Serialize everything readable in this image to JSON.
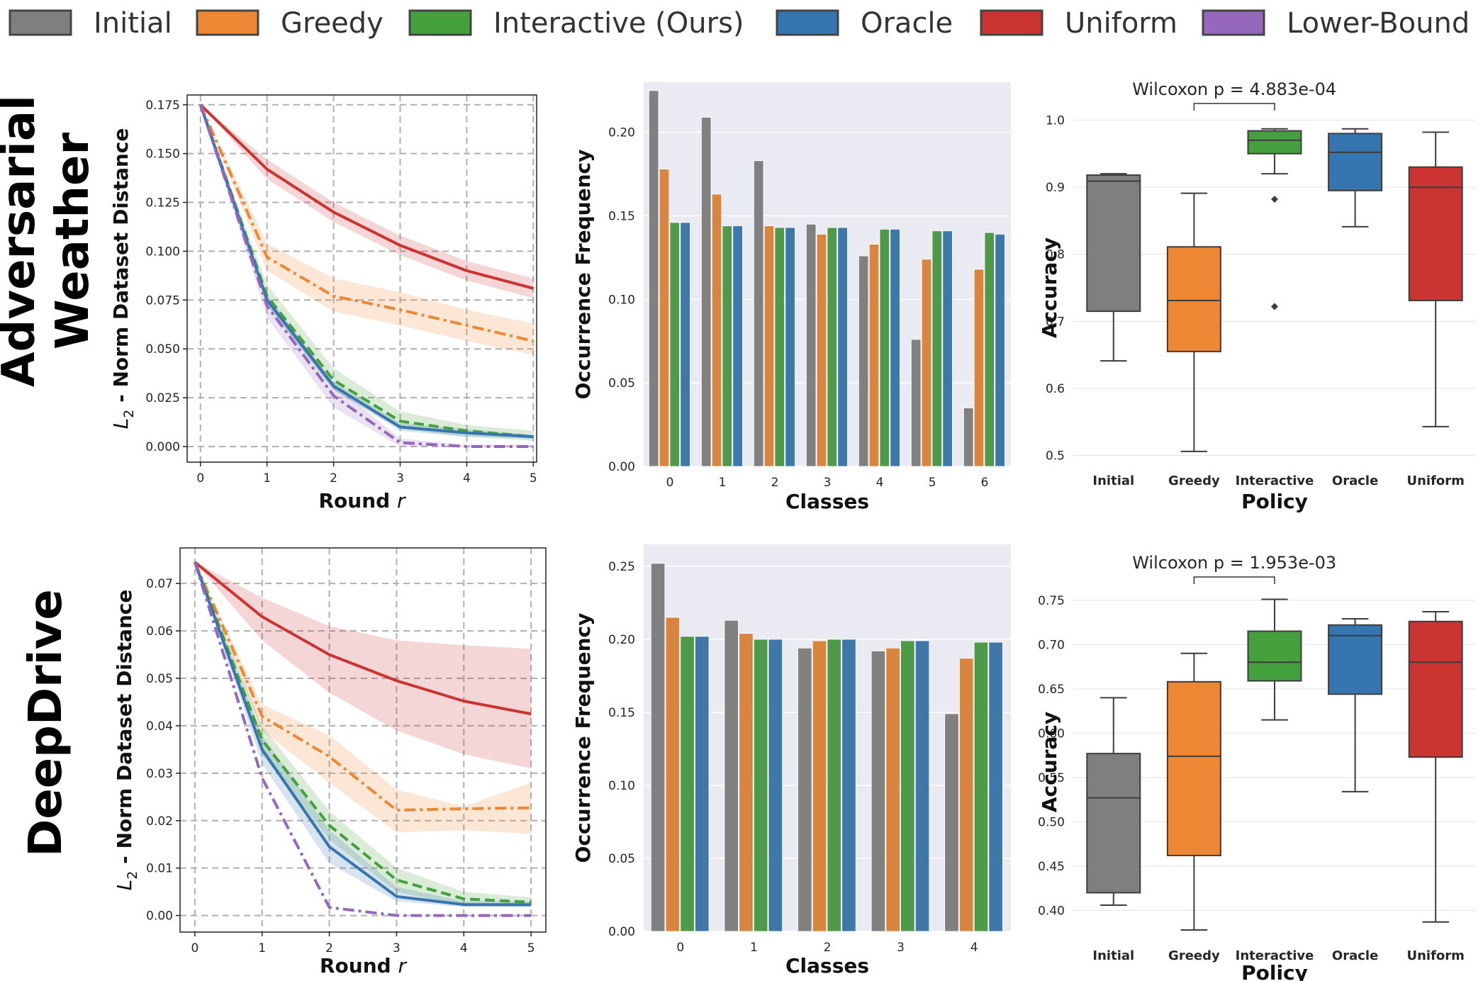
{
  "colors": {
    "Initial": "#7f7f7f",
    "Greedy": "#ee8733",
    "Interactive": "#44a03d",
    "Oracle": "#3575b0",
    "Uniform": "#cc3431",
    "LowerBound": "#9467bd",
    "bar_Initial": "#808080",
    "bar_Greedy": "#d98540",
    "bar_Interactive": "#4f9a48",
    "bar_Oracle": "#3f78a8",
    "panel_bg": "#eaeaf2"
  },
  "legend": [
    "Initial",
    "Greedy",
    "Interactive (Ours)",
    "Oracle",
    "Uniform",
    "Lower-Bound"
  ],
  "rows": [
    {
      "label_lines": [
        "Adversarial",
        "Weather"
      ]
    },
    {
      "label_lines": [
        "DeepDrive"
      ]
    }
  ],
  "chart_data": [
    {
      "id": "aw-distance",
      "type": "line",
      "xlabel": "Round r",
      "ylabel": "L2 - Norm Dataset Distance",
      "x": [
        0,
        1,
        2,
        3,
        4,
        5
      ],
      "xlim": [
        -0.2,
        5.05
      ],
      "ylim": [
        -0.008,
        0.18
      ],
      "yticks": [
        "0.000",
        "0.025",
        "0.050",
        "0.075",
        "0.100",
        "0.125",
        "0.150",
        "0.175"
      ],
      "grid": true,
      "series": [
        {
          "name": "Uniform",
          "style": "solid",
          "values": [
            0.175,
            0.142,
            0.12,
            0.103,
            0.09,
            0.081
          ],
          "lower": [
            0.175,
            0.137,
            0.115,
            0.098,
            0.085,
            0.076
          ],
          "upper": [
            0.175,
            0.147,
            0.125,
            0.108,
            0.095,
            0.086
          ]
        },
        {
          "name": "Greedy",
          "style": "dashdot",
          "values": [
            0.175,
            0.097,
            0.077,
            0.07,
            0.062,
            0.054
          ],
          "lower": [
            0.175,
            0.09,
            0.069,
            0.062,
            0.054,
            0.047
          ],
          "upper": [
            0.175,
            0.104,
            0.086,
            0.079,
            0.07,
            0.063
          ]
        },
        {
          "name": "Interactive",
          "style": "dashed",
          "values": [
            0.175,
            0.077,
            0.034,
            0.013,
            0.008,
            0.005
          ],
          "lower": [
            0.175,
            0.072,
            0.029,
            0.009,
            0.005,
            0.003
          ],
          "upper": [
            0.175,
            0.083,
            0.04,
            0.018,
            0.011,
            0.008
          ]
        },
        {
          "name": "Oracle",
          "style": "solid",
          "values": [
            0.175,
            0.075,
            0.031,
            0.01,
            0.007,
            0.005
          ],
          "lower": [
            0.175,
            0.073,
            0.029,
            0.008,
            0.005,
            0.004
          ],
          "upper": [
            0.175,
            0.077,
            0.033,
            0.012,
            0.009,
            0.006
          ]
        },
        {
          "name": "LowerBound",
          "style": "dashdot",
          "values": [
            0.175,
            0.072,
            0.026,
            0.002,
            0.0,
            0.0
          ],
          "lower": [
            0.175,
            0.066,
            0.02,
            0.0,
            0.0,
            0.0
          ],
          "upper": [
            0.175,
            0.078,
            0.032,
            0.004,
            0.001,
            0.001
          ]
        }
      ]
    },
    {
      "id": "aw-frequency",
      "type": "bar",
      "xlabel": "Classes",
      "ylabel": "Occurrence Frequency",
      "categories": [
        "0",
        "1",
        "2",
        "3",
        "4",
        "5",
        "6"
      ],
      "ylim": [
        0,
        0.23
      ],
      "yticks": [
        "0.00",
        "0.05",
        "0.10",
        "0.15",
        "0.20"
      ],
      "series": [
        {
          "name": "Initial",
          "values": [
            0.225,
            0.209,
            0.183,
            0.145,
            0.126,
            0.076,
            0.035
          ]
        },
        {
          "name": "Greedy",
          "values": [
            0.178,
            0.163,
            0.144,
            0.139,
            0.133,
            0.124,
            0.118
          ]
        },
        {
          "name": "Interactive",
          "values": [
            0.146,
            0.144,
            0.143,
            0.143,
            0.142,
            0.141,
            0.14
          ]
        },
        {
          "name": "Oracle",
          "values": [
            0.146,
            0.144,
            0.143,
            0.143,
            0.142,
            0.141,
            0.139
          ]
        }
      ]
    },
    {
      "id": "aw-accuracy",
      "type": "box",
      "xlabel": "Policy",
      "ylabel": "Accuracy",
      "categories": [
        "Initial",
        "Greedy",
        "Interactive",
        "Oracle",
        "Uniform"
      ],
      "ylim": [
        0.49,
        1.01
      ],
      "yticks": [
        "0.5",
        "0.6",
        "0.7",
        "0.8",
        "0.9",
        "1.0"
      ],
      "annotation": "Wilcoxon p = 4.883e-04",
      "bracket": [
        "Greedy",
        "Interactive"
      ],
      "boxes": [
        {
          "whislo": 0.641,
          "q1": 0.715,
          "med": 0.909,
          "q3": 0.918,
          "whishi": 0.92,
          "fliers": []
        },
        {
          "whislo": 0.506,
          "q1": 0.655,
          "med": 0.731,
          "q3": 0.811,
          "whishi": 0.891,
          "fliers": []
        },
        {
          "whislo": 0.92,
          "q1": 0.95,
          "med": 0.97,
          "q3": 0.984,
          "whishi": 0.987,
          "fliers": [
            0.882,
            0.722
          ]
        },
        {
          "whislo": 0.841,
          "q1": 0.895,
          "med": 0.952,
          "q3": 0.98,
          "whishi": 0.987,
          "fliers": []
        },
        {
          "whislo": 0.543,
          "q1": 0.731,
          "med": 0.9,
          "q3": 0.93,
          "whishi": 0.982,
          "fliers": []
        }
      ]
    },
    {
      "id": "dd-distance",
      "type": "line",
      "xlabel": "Round r",
      "ylabel": "L2 - Norm Dataset Distance",
      "x": [
        0,
        1,
        2,
        3,
        4,
        5
      ],
      "xlim": [
        -0.22,
        5.22
      ],
      "ylim": [
        -0.0035,
        0.0775
      ],
      "yticks": [
        "0.00",
        "0.01",
        "0.02",
        "0.03",
        "0.04",
        "0.05",
        "0.06",
        "0.07"
      ],
      "grid": true,
      "series": [
        {
          "name": "Uniform",
          "style": "solid",
          "values": [
            0.0745,
            0.063,
            0.055,
            0.0495,
            0.0452,
            0.0425
          ],
          "lower": [
            0.0745,
            0.058,
            0.047,
            0.039,
            0.034,
            0.031
          ],
          "upper": [
            0.0745,
            0.067,
            0.061,
            0.058,
            0.057,
            0.0562
          ]
        },
        {
          "name": "Greedy",
          "style": "dashdot",
          "values": [
            0.0745,
            0.042,
            0.0335,
            0.0222,
            0.0225,
            0.0227
          ],
          "lower": [
            0.0745,
            0.039,
            0.028,
            0.0175,
            0.018,
            0.0172
          ],
          "upper": [
            0.0745,
            0.0445,
            0.038,
            0.0265,
            0.023,
            0.028
          ]
        },
        {
          "name": "Interactive",
          "style": "dashed",
          "values": [
            0.0745,
            0.037,
            0.019,
            0.0075,
            0.0035,
            0.0028
          ],
          "lower": [
            0.0745,
            0.034,
            0.016,
            0.005,
            0.002,
            0.0018
          ],
          "upper": [
            0.0745,
            0.04,
            0.022,
            0.01,
            0.005,
            0.0038
          ]
        },
        {
          "name": "Oracle",
          "style": "solid",
          "values": [
            0.0745,
            0.035,
            0.0145,
            0.004,
            0.0023,
            0.0023
          ],
          "lower": [
            0.0745,
            0.032,
            0.011,
            0.003,
            0.0018,
            0.0018
          ],
          "upper": [
            0.0745,
            0.038,
            0.018,
            0.006,
            0.003,
            0.003
          ]
        },
        {
          "name": "LowerBound",
          "style": "dashdot",
          "values": [
            0.0745,
            0.029,
            0.0017,
            0.0,
            0.0,
            0.0
          ],
          "lower": [
            0.0745,
            0.029,
            0.0017,
            0.0,
            0.0,
            0.0
          ],
          "upper": [
            0.0745,
            0.029,
            0.0017,
            0.0,
            0.0,
            0.0
          ]
        }
      ]
    },
    {
      "id": "dd-frequency",
      "type": "bar",
      "xlabel": "Classes",
      "ylabel": "Occurrence Frequency",
      "categories": [
        "0",
        "1",
        "2",
        "3",
        "4"
      ],
      "ylim": [
        0,
        0.265
      ],
      "yticks": [
        "0.00",
        "0.05",
        "0.10",
        "0.15",
        "0.20",
        "0.25"
      ],
      "series": [
        {
          "name": "Initial",
          "values": [
            0.252,
            0.213,
            0.194,
            0.192,
            0.149
          ]
        },
        {
          "name": "Greedy",
          "values": [
            0.215,
            0.204,
            0.199,
            0.194,
            0.187
          ]
        },
        {
          "name": "Interactive",
          "values": [
            0.202,
            0.2,
            0.2,
            0.199,
            0.198
          ]
        },
        {
          "name": "Oracle",
          "values": [
            0.202,
            0.2,
            0.2,
            0.199,
            0.198
          ]
        }
      ]
    },
    {
      "id": "dd-accuracy",
      "type": "box",
      "xlabel": "Policy",
      "ylabel": "Accuracy",
      "categories": [
        "Initial",
        "Greedy",
        "Interactive",
        "Oracle",
        "Uniform"
      ],
      "ylim": [
        0.37,
        0.765
      ],
      "yticks": [
        "0.40",
        "0.45",
        "0.50",
        "0.55",
        "0.60",
        "0.65",
        "0.70",
        "0.75"
      ],
      "annotation": "Wilcoxon p = 1.953e-03",
      "bracket": [
        "Greedy",
        "Interactive"
      ],
      "boxes": [
        {
          "whislo": 0.406,
          "q1": 0.42,
          "med": 0.527,
          "q3": 0.577,
          "whishi": 0.64,
          "fliers": []
        },
        {
          "whislo": 0.378,
          "q1": 0.462,
          "med": 0.574,
          "q3": 0.658,
          "whishi": 0.69,
          "fliers": []
        },
        {
          "whislo": 0.615,
          "q1": 0.659,
          "med": 0.68,
          "q3": 0.715,
          "whishi": 0.751,
          "fliers": []
        },
        {
          "whislo": 0.534,
          "q1": 0.644,
          "med": 0.71,
          "q3": 0.722,
          "whishi": 0.729,
          "fliers": []
        },
        {
          "whislo": 0.387,
          "q1": 0.573,
          "med": 0.68,
          "q3": 0.726,
          "whishi": 0.737,
          "fliers": []
        }
      ]
    }
  ]
}
